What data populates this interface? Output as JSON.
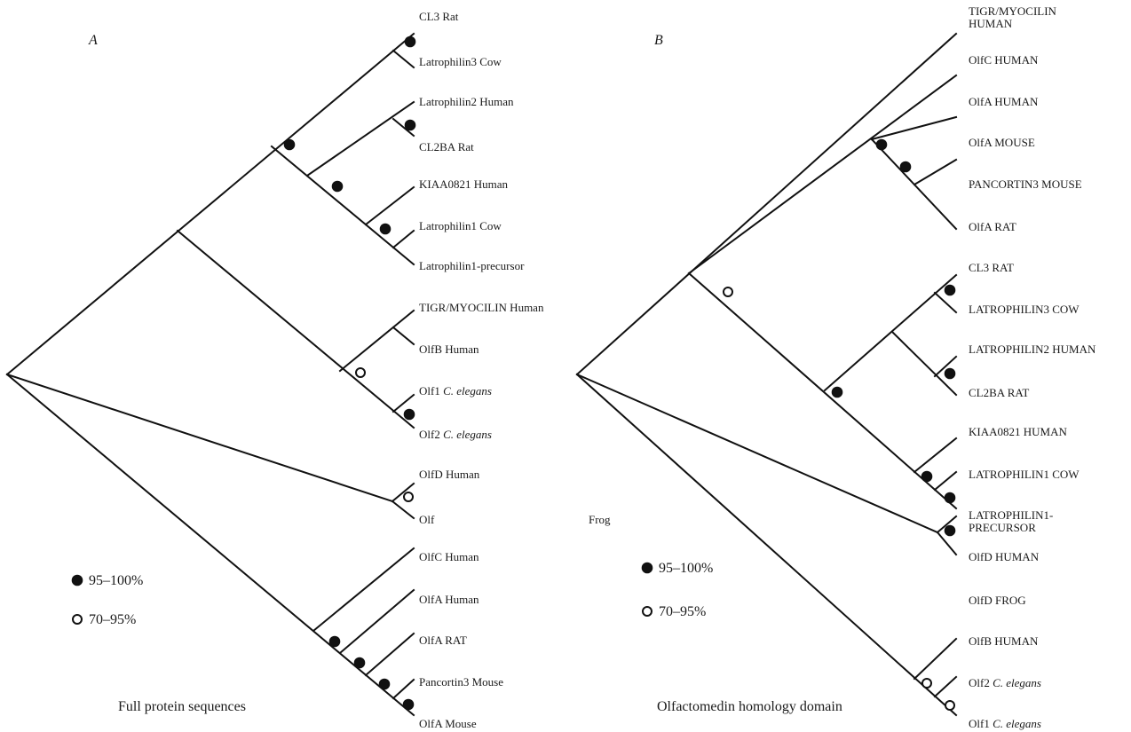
{
  "panel_a": {
    "letter": "A",
    "caption": "Full protein sequences",
    "leaves": [
      {
        "label": "CL3 Rat"
      },
      {
        "label": "Latrophilin3 Cow"
      },
      {
        "label": "Latrophilin2 Human"
      },
      {
        "label": "CL2BA Rat"
      },
      {
        "label": "KIAA0821 Human"
      },
      {
        "label": "Latrophilin1 Cow"
      },
      {
        "label": "Latrophilin1-precursor"
      },
      {
        "label": "TIGR/MYOCILIN Human"
      },
      {
        "label": "OlfB Human"
      },
      {
        "label": "Olf1",
        "species": "C. elegans"
      },
      {
        "label": "Olf2",
        "species": "C. elegans"
      },
      {
        "label": "OlfD Human"
      },
      {
        "label": "Olf"
      },
      {
        "label": "OlfC Human"
      },
      {
        "label": "OlfA Human"
      },
      {
        "label": "OlfA RAT"
      },
      {
        "label": "Pancortin3 Mouse"
      },
      {
        "label": "OlfA Mouse"
      }
    ]
  },
  "panel_b": {
    "letter": "B",
    "caption": "Olfactomedin homology domain",
    "leaves": [
      {
        "label": "TIGR/MYOCILIN",
        "line2": "HUMAN"
      },
      {
        "label": "OlfC HUMAN"
      },
      {
        "label": "OlfA HUMAN"
      },
      {
        "label": "OlfA MOUSE"
      },
      {
        "label": "PANCORTIN3 MOUSE"
      },
      {
        "label": "OlfA RAT"
      },
      {
        "label": "CL3 RAT"
      },
      {
        "label": "LATROPHILIN3 COW"
      },
      {
        "label": "LATROPHILIN2 HUMAN"
      },
      {
        "label": "CL2BA RAT"
      },
      {
        "label": "KIAA0821 HUMAN"
      },
      {
        "label": "LATROPHILIN1 COW"
      },
      {
        "label": "LATROPHILIN1-",
        "line2": "PRECURSOR"
      },
      {
        "label": "OlfD HUMAN"
      },
      {
        "label": "OlfD FROG"
      },
      {
        "label": "OlfB HUMAN"
      },
      {
        "label": "Olf2",
        "species": "C. elegans"
      },
      {
        "label": "Olf1",
        "species": "C. elegans"
      }
    ]
  },
  "stray_label": "Frog",
  "legend": {
    "filled": "95–100%",
    "open": "70–95%"
  }
}
